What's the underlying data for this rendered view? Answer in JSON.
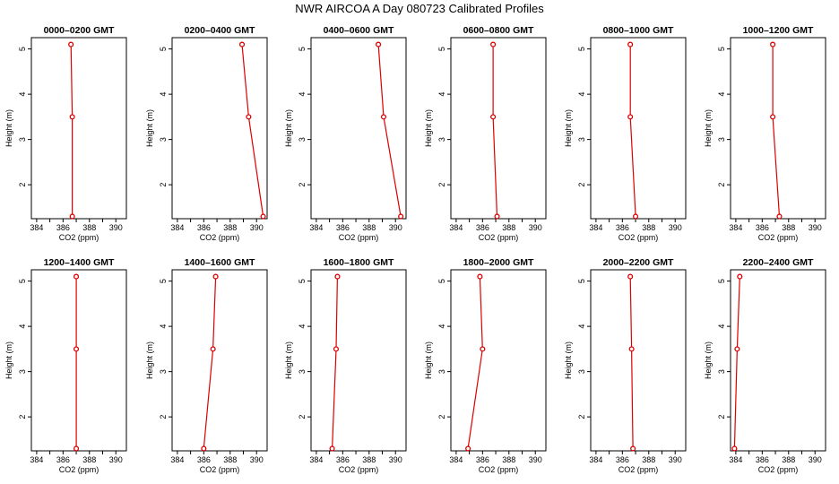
{
  "title": "NWR AIRCOA A  Day 080723  Calibrated Profiles",
  "colors": {
    "series": "#dd0000",
    "axis": "#000000"
  },
  "chart_data": [
    {
      "type": "line",
      "title": "0000–0200 GMT",
      "xlabel": "CO2 (ppm)",
      "ylabel": "Height (m)",
      "xlim": [
        383.6,
        390.8
      ],
      "ylim": [
        1.25,
        5.25
      ],
      "xticks": [
        "384",
        "386",
        "388",
        "390"
      ],
      "yticks": [
        "2",
        "3",
        "4",
        "5"
      ],
      "points": [
        {
          "x": 386.6,
          "y": 5.1
        },
        {
          "x": 386.7,
          "y": 3.5
        },
        {
          "x": 386.7,
          "y": 1.3
        }
      ]
    },
    {
      "type": "line",
      "title": "0200–0400 GMT",
      "xlabel": "CO2 (ppm)",
      "ylabel": "Height (m)",
      "xlim": [
        383.6,
        390.8
      ],
      "ylim": [
        1.25,
        5.25
      ],
      "xticks": [
        "384",
        "386",
        "388",
        "390"
      ],
      "yticks": [
        "2",
        "3",
        "4",
        "5"
      ],
      "points": [
        {
          "x": 388.9,
          "y": 5.1
        },
        {
          "x": 389.4,
          "y": 3.5
        },
        {
          "x": 390.5,
          "y": 1.3
        }
      ]
    },
    {
      "type": "line",
      "title": "0400–0600 GMT",
      "xlabel": "CO2 (ppm)",
      "ylabel": "Height (m)",
      "xlim": [
        383.6,
        390.8
      ],
      "ylim": [
        1.25,
        5.25
      ],
      "xticks": [
        "384",
        "386",
        "388",
        "390"
      ],
      "yticks": [
        "2",
        "3",
        "4",
        "5"
      ],
      "points": [
        {
          "x": 388.7,
          "y": 5.1
        },
        {
          "x": 389.1,
          "y": 3.5
        },
        {
          "x": 390.4,
          "y": 1.3
        }
      ]
    },
    {
      "type": "line",
      "title": "0600–0800 GMT",
      "xlabel": "CO2 (ppm)",
      "ylabel": "Height (m)",
      "xlim": [
        383.6,
        390.8
      ],
      "ylim": [
        1.25,
        5.25
      ],
      "xticks": [
        "384",
        "386",
        "388",
        "390"
      ],
      "yticks": [
        "2",
        "3",
        "4",
        "5"
      ],
      "points": [
        {
          "x": 386.8,
          "y": 5.1
        },
        {
          "x": 386.8,
          "y": 3.5
        },
        {
          "x": 387.1,
          "y": 1.3
        }
      ]
    },
    {
      "type": "line",
      "title": "0800–1000 GMT",
      "xlabel": "CO2 (ppm)",
      "ylabel": "Height (m)",
      "xlim": [
        383.6,
        390.8
      ],
      "ylim": [
        1.25,
        5.25
      ],
      "xticks": [
        "384",
        "386",
        "388",
        "390"
      ],
      "yticks": [
        "2",
        "3",
        "4",
        "5"
      ],
      "points": [
        {
          "x": 386.6,
          "y": 5.1
        },
        {
          "x": 386.6,
          "y": 3.5
        },
        {
          "x": 387.0,
          "y": 1.3
        }
      ]
    },
    {
      "type": "line",
      "title": "1000–1200 GMT",
      "xlabel": "CO2 (ppm)",
      "ylabel": "Height (m)",
      "xlim": [
        383.6,
        390.8
      ],
      "ylim": [
        1.25,
        5.25
      ],
      "xticks": [
        "384",
        "386",
        "388",
        "390"
      ],
      "yticks": [
        "2",
        "3",
        "4",
        "5"
      ],
      "points": [
        {
          "x": 386.8,
          "y": 5.1
        },
        {
          "x": 386.8,
          "y": 3.5
        },
        {
          "x": 387.3,
          "y": 1.3
        }
      ]
    },
    {
      "type": "line",
      "title": "1200–1400 GMT",
      "xlabel": "CO2 (ppm)",
      "ylabel": "Height (m)",
      "xlim": [
        383.6,
        390.8
      ],
      "ylim": [
        1.25,
        5.25
      ],
      "xticks": [
        "384",
        "386",
        "388",
        "390"
      ],
      "yticks": [
        "2",
        "3",
        "4",
        "5"
      ],
      "points": [
        {
          "x": 387.0,
          "y": 5.1
        },
        {
          "x": 387.0,
          "y": 3.5
        },
        {
          "x": 387.0,
          "y": 1.3
        }
      ]
    },
    {
      "type": "line",
      "title": "1400–1600 GMT",
      "xlabel": "CO2 (ppm)",
      "ylabel": "Height (m)",
      "xlim": [
        383.6,
        390.8
      ],
      "ylim": [
        1.25,
        5.25
      ],
      "xticks": [
        "384",
        "386",
        "388",
        "390"
      ],
      "yticks": [
        "2",
        "3",
        "4",
        "5"
      ],
      "points": [
        {
          "x": 386.9,
          "y": 5.1
        },
        {
          "x": 386.7,
          "y": 3.5
        },
        {
          "x": 386.0,
          "y": 1.3
        }
      ]
    },
    {
      "type": "line",
      "title": "1600–1800 GMT",
      "xlabel": "CO2 (ppm)",
      "ylabel": "Height (m)",
      "xlim": [
        383.6,
        390.8
      ],
      "ylim": [
        1.25,
        5.25
      ],
      "xticks": [
        "384",
        "386",
        "388",
        "390"
      ],
      "yticks": [
        "2",
        "3",
        "4",
        "5"
      ],
      "points": [
        {
          "x": 385.6,
          "y": 5.1
        },
        {
          "x": 385.5,
          "y": 3.5
        },
        {
          "x": 385.2,
          "y": 1.3
        }
      ]
    },
    {
      "type": "line",
      "title": "1800–2000 GMT",
      "xlabel": "CO2 (ppm)",
      "ylabel": "Height (m)",
      "xlim": [
        383.6,
        390.8
      ],
      "ylim": [
        1.25,
        5.25
      ],
      "xticks": [
        "384",
        "386",
        "388",
        "390"
      ],
      "yticks": [
        "2",
        "3",
        "4",
        "5"
      ],
      "points": [
        {
          "x": 385.8,
          "y": 5.1
        },
        {
          "x": 386.0,
          "y": 3.5
        },
        {
          "x": 384.9,
          "y": 1.3
        }
      ]
    },
    {
      "type": "line",
      "title": "2000–2200 GMT",
      "xlabel": "CO2 (ppm)",
      "ylabel": "Height (m)",
      "xlim": [
        383.6,
        390.8
      ],
      "ylim": [
        1.25,
        5.25
      ],
      "xticks": [
        "384",
        "386",
        "388",
        "390"
      ],
      "yticks": [
        "2",
        "3",
        "4",
        "5"
      ],
      "points": [
        {
          "x": 386.6,
          "y": 5.1
        },
        {
          "x": 386.7,
          "y": 3.5
        },
        {
          "x": 386.8,
          "y": 1.3
        }
      ]
    },
    {
      "type": "line",
      "title": "2200–2400 GMT",
      "xlabel": "CO2 (ppm)",
      "ylabel": "Height (m)",
      "xlim": [
        383.6,
        390.8
      ],
      "ylim": [
        1.25,
        5.25
      ],
      "xticks": [
        "384",
        "386",
        "388",
        "390"
      ],
      "yticks": [
        "2",
        "3",
        "4",
        "5"
      ],
      "points": [
        {
          "x": 384.3,
          "y": 5.1
        },
        {
          "x": 384.1,
          "y": 3.5
        },
        {
          "x": 383.9,
          "y": 1.3
        }
      ]
    }
  ]
}
